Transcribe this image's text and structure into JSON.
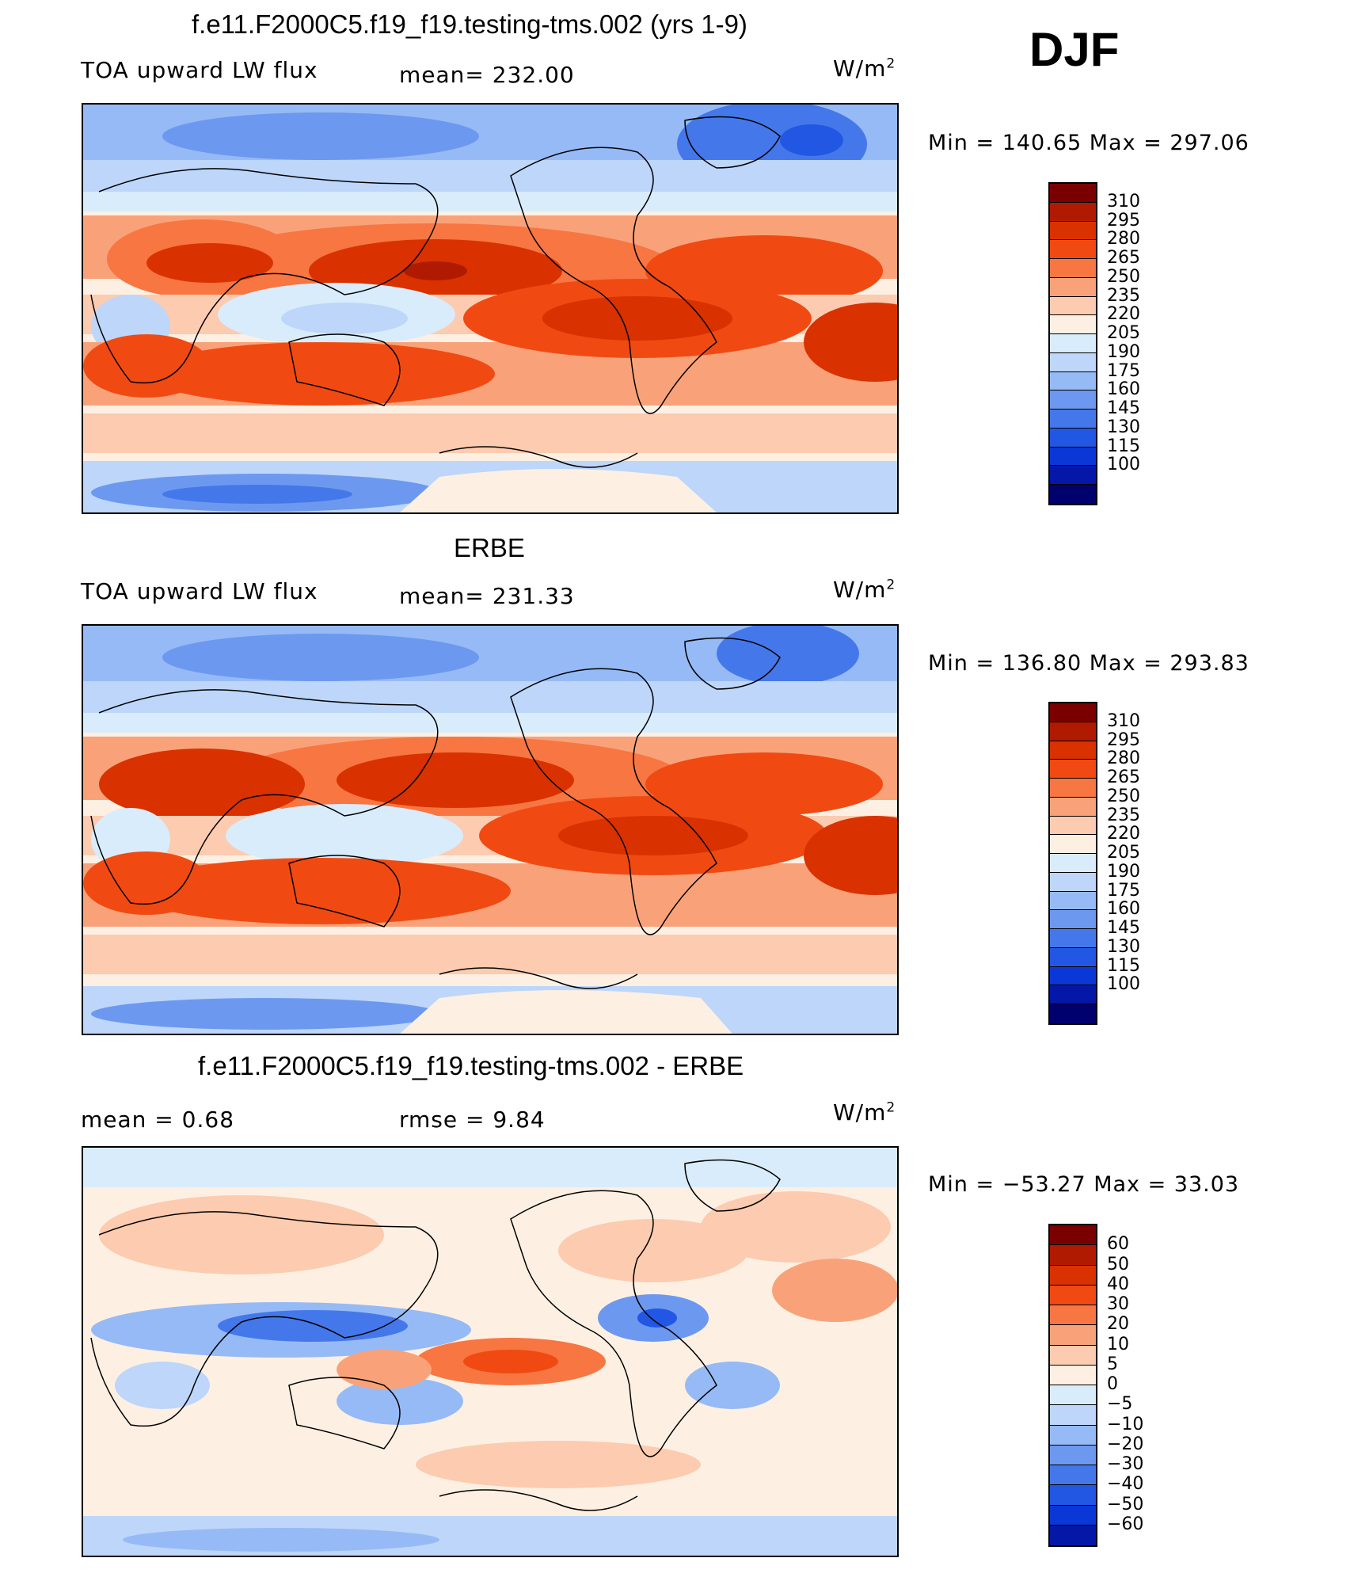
{
  "season": "DJF",
  "panels": [
    {
      "title": "f.e11.F2000C5.f19_f19.testing-tms.002 (yrs 1-9)",
      "variable": "TOA upward LW flux",
      "stat1": "mean= 232.00",
      "stat2": "",
      "units_base": "W/m",
      "units_exp": "2",
      "minmax": "Min  =  140.65  Max  =  297.06",
      "colorbar": {
        "colors": [
          "#7a0000",
          "#b01a00",
          "#d93200",
          "#f04a12",
          "#f77642",
          "#f9a279",
          "#fccbb0",
          "#fdf0e2",
          "#d9ecfb",
          "#bdd6f9",
          "#96baf5",
          "#6c99ef",
          "#4478ea",
          "#2257e3",
          "#0a37d6",
          "#0517a6",
          "#00006e"
        ],
        "ticks": [
          "310",
          "295",
          "280",
          "265",
          "250",
          "235",
          "220",
          "205",
          "190",
          "175",
          "160",
          "145",
          "130",
          "115",
          "100"
        ]
      }
    },
    {
      "title": "ERBE",
      "variable": "TOA upward LW flux",
      "stat1": "mean= 231.33",
      "stat2": "",
      "units_base": "W/m",
      "units_exp": "2",
      "minmax": "Min  =  136.80  Max  =  293.83",
      "colorbar": {
        "colors": [
          "#7a0000",
          "#b01a00",
          "#d93200",
          "#f04a12",
          "#f77642",
          "#f9a279",
          "#fccbb0",
          "#fdf0e2",
          "#d9ecfb",
          "#bdd6f9",
          "#96baf5",
          "#6c99ef",
          "#4478ea",
          "#2257e3",
          "#0a37d6",
          "#0517a6",
          "#00006e"
        ],
        "ticks": [
          "310",
          "295",
          "280",
          "265",
          "250",
          "235",
          "220",
          "205",
          "190",
          "175",
          "160",
          "145",
          "130",
          "115",
          "100"
        ]
      }
    },
    {
      "title": "f.e11.F2000C5.f19_f19.testing-tms.002 - ERBE",
      "variable": "",
      "stat1": "mean =     0.68",
      "stat2": "rmse  =     9.84",
      "units_base": "W/m",
      "units_exp": "2",
      "minmax": "Min  =  −53.27  Max  =     33.03",
      "colorbar": {
        "colors": [
          "#7a0000",
          "#b01a00",
          "#d93200",
          "#f04a12",
          "#f77642",
          "#f9a279",
          "#fccbb0",
          "#fdf0e2",
          "#d9ecfb",
          "#bdd6f9",
          "#96baf5",
          "#6c99ef",
          "#4478ea",
          "#2257e3",
          "#0a37d6",
          "#0517a6"
        ],
        "ticks": [
          "60",
          "50",
          "40",
          "30",
          "20",
          "10",
          "5",
          "0",
          "−5",
          "−10",
          "−20",
          "−30",
          "−40",
          "−50",
          "−60"
        ]
      }
    }
  ]
}
